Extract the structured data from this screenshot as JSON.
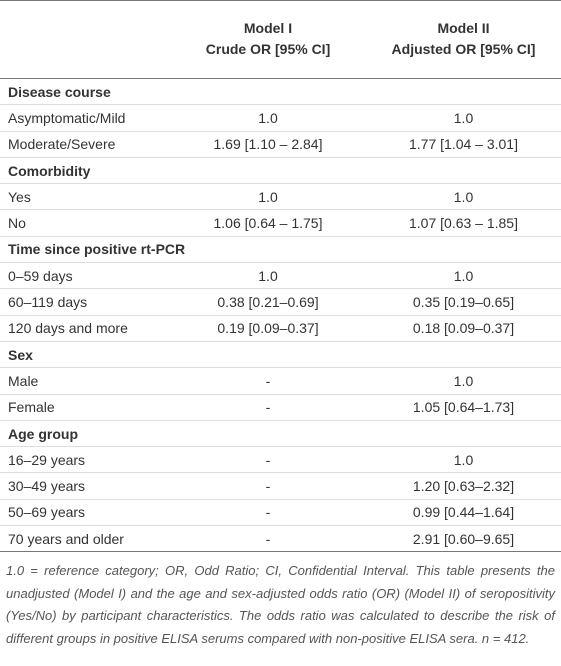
{
  "table": {
    "header": {
      "col1": [
        "Model I",
        "Crude OR [95% CI]"
      ],
      "col2": [
        "Model II",
        "Adjusted OR [95% CI]"
      ]
    },
    "sections": [
      {
        "title": "Disease course",
        "rows": [
          [
            "Asymptomatic/Mild",
            "1.0",
            "1.0"
          ],
          [
            "Moderate/Severe",
            "1.69 [1.10 – 2.84]",
            "1.77 [1.04 – 3.01]"
          ]
        ]
      },
      {
        "title": "Comorbidity",
        "rows": [
          [
            "Yes",
            "1.0",
            "1.0"
          ],
          [
            "No",
            "1.06 [0.64 – 1.75]",
            "1.07 [0.63 – 1.85]"
          ]
        ]
      },
      {
        "title": "Time since positive rt-PCR",
        "rows": [
          [
            "0–59 days",
            "1.0",
            "1.0"
          ],
          [
            "60–119 days",
            "0.38 [0.21–0.69]",
            "0.35 [0.19–0.65]"
          ],
          [
            "120 days and more",
            "0.19 [0.09–0.37]",
            "0.18 [0.09–0.37]"
          ]
        ]
      },
      {
        "title": "Sex",
        "rows": [
          [
            "Male",
            "-",
            "1.0"
          ],
          [
            "Female",
            "-",
            "1.05 [0.64–1.73]"
          ]
        ]
      },
      {
        "title": "Age group",
        "rows": [
          [
            "16–29 years",
            "-",
            "1.0"
          ],
          [
            "30–49 years",
            "-",
            "1.20 [0.63–2.32]"
          ],
          [
            "50–69 years",
            "-",
            "0.99 [0.44–1.64]"
          ],
          [
            "70 years and older",
            "-",
            "2.91 [0.60–9.65]"
          ]
        ]
      }
    ],
    "footnote": "1.0 = reference category; OR, Odd Ratio; CI, Confidential Interval. This table presents the unadjusted (Model I) and the age and sex-adjusted odds ratio (OR) (Model II) of seropositivity (Yes/No) by participant characteristics. The odds ratio was calculated to describe the risk of different groups in positive ELISA serums compared with non-positive ELISA sera. n = 412."
  }
}
